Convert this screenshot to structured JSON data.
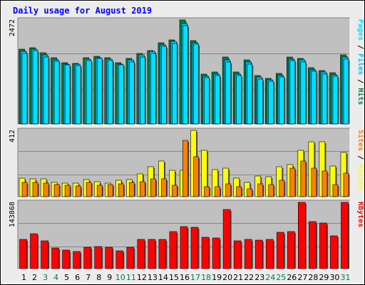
{
  "colors": {
    "frame_bg": "#ececec",
    "panel_bg": "#c0c0c0",
    "grid": "#888888",
    "title": "#0000ff",
    "hits": "#008040",
    "files": "#00c0ff",
    "pages": "#00e0ff",
    "visits": "#ffff00",
    "sites": "#ff8000",
    "kbytes": "#ff0000",
    "day_weekday": "#000000",
    "day_weekend": "#008040"
  },
  "chart_data": {
    "type": "bar",
    "title": "Daily usage for August 2019",
    "categories": [
      "1",
      "2",
      "3",
      "4",
      "5",
      "6",
      "7",
      "8",
      "9",
      "10",
      "11",
      "12",
      "13",
      "14",
      "15",
      "16",
      "17",
      "18",
      "19",
      "20",
      "21",
      "22",
      "23",
      "24",
      "25",
      "26",
      "27",
      "28",
      "29",
      "30",
      "31"
    ],
    "weekend_days": [
      "3",
      "4",
      "10",
      "11",
      "17",
      "18",
      "24",
      "25",
      "31"
    ],
    "panels": [
      {
        "name": "top",
        "max_label": "2472",
        "ylim": [
          0,
          2472
        ],
        "legend": [
          {
            "text": "Pages",
            "color": "#00e0ff"
          },
          {
            "text": " / ",
            "color": "#000000"
          },
          {
            "text": "Files",
            "color": "#00c0ff"
          },
          {
            "text": " / ",
            "color": "#000000"
          },
          {
            "text": "Hits",
            "color": "#008040"
          }
        ],
        "series": [
          {
            "name": "Hits",
            "color": "#008040",
            "values": [
              1770,
              1815,
              1690,
              1580,
              1460,
              1445,
              1580,
              1610,
              1575,
              1460,
              1565,
              1680,
              1750,
              1925,
              2005,
              2470,
              1985,
              1190,
              1235,
              1585,
              1240,
              1530,
              1150,
              1090,
              1200,
              1595,
              1565,
              1330,
              1270,
              1220,
              1640
            ]
          },
          {
            "name": "Files",
            "color": "#00c0ff",
            "values": [
              1720,
              1780,
              1640,
              1530,
              1430,
              1420,
              1540,
              1580,
              1540,
              1430,
              1520,
              1640,
              1720,
              1880,
              1965,
              2390,
              1935,
              1140,
              1190,
              1530,
              1190,
              1480,
              1110,
              1050,
              1150,
              1545,
              1530,
              1290,
              1235,
              1170,
              1590
            ]
          },
          {
            "name": "Pages",
            "color": "#00e0ff",
            "values": [
              1680,
              1740,
              1600,
              1490,
              1400,
              1390,
              1500,
              1550,
              1500,
              1400,
              1480,
              1600,
              1680,
              1840,
              1920,
              2340,
              1890,
              1100,
              1150,
              1480,
              1150,
              1430,
              1070,
              1010,
              1110,
              1500,
              1480,
              1250,
              1190,
              1130,
              1540
            ]
          }
        ]
      },
      {
        "name": "middle",
        "max_label": "412",
        "ylim": [
          0,
          412
        ],
        "legend": [
          {
            "text": "Sites",
            "color": "#ff8000"
          },
          {
            "text": " / ",
            "color": "#000000"
          },
          {
            "text": "Visits",
            "color": "#ffff00"
          }
        ],
        "series": [
          {
            "name": "Visits",
            "color": "#ffff00",
            "values": [
              115,
              110,
              110,
              90,
              85,
              85,
              105,
              95,
              85,
              100,
              105,
              140,
              185,
              220,
              165,
              165,
              412,
              290,
              170,
              175,
              115,
              90,
              130,
              125,
              185,
              200,
              290,
              340,
              340,
              190,
              275
            ]
          },
          {
            "name": "Sites",
            "color": "#ff8000",
            "values": [
              90,
              90,
              85,
              75,
              70,
              65,
              90,
              70,
              75,
              80,
              90,
              95,
              110,
              110,
              70,
              350,
              250,
              60,
              60,
              80,
              60,
              50,
              80,
              75,
              100,
              175,
              220,
              175,
              160,
              75,
              145
            ]
          }
        ]
      },
      {
        "name": "bottom",
        "max_label": "143868",
        "ylim": [
          0,
          143868
        ],
        "legend": [
          {
            "text": "KBytes",
            "color": "#ff0000"
          }
        ],
        "series": [
          {
            "name": "KBytes",
            "color": "#ff0000",
            "values": [
              64000,
              76000,
              61000,
              45000,
              40000,
              37000,
              46000,
              48000,
              46000,
              38000,
              46000,
              64000,
              64000,
              64000,
              80000,
              92000,
              90000,
              68000,
              66000,
              129000,
              60000,
              63000,
              62000,
              63000,
              79000,
              80000,
              143868,
              102000,
              99000,
              71000,
              143868
            ]
          }
        ]
      }
    ]
  }
}
